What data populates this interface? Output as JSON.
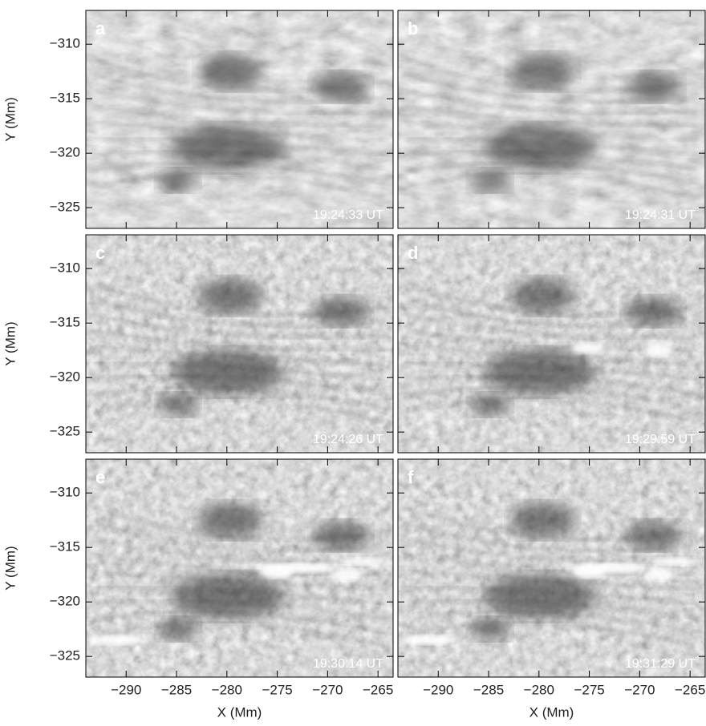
{
  "chart_data": [
    {
      "type": "image",
      "label": "a",
      "annotation": "19:24:33 UT",
      "xlim": [
        -294,
        -263.5
      ],
      "ylim": [
        -326.9,
        -306.9
      ],
      "xticks": [
        -290,
        -285,
        -280,
        -275,
        -270,
        -265
      ],
      "yticks": [
        {
          "value": -310,
          "label": "−310"
        },
        {
          "value": -315,
          "label": "−315"
        },
        {
          "value": -320,
          "label": "−320"
        },
        {
          "value": -325,
          "label": "−325"
        }
      ],
      "ylabel": "Y (Mm)"
    },
    {
      "type": "image",
      "label": "b",
      "annotation": "19:24:31 UT",
      "xlim": [
        -294,
        -263.5
      ],
      "ylim": [
        -326.9,
        -306.9
      ],
      "xticks": [
        -290,
        -285,
        -280,
        -275,
        -270,
        -265
      ],
      "yticks": [
        -310,
        -315,
        -320,
        -325
      ]
    },
    {
      "type": "image",
      "label": "c",
      "annotation": "19:24:26 UT",
      "xlim": [
        -294,
        -263.5
      ],
      "ylim": [
        -326.9,
        -306.9
      ],
      "xticks": [
        -290,
        -285,
        -280,
        -275,
        -270,
        -265
      ],
      "yticks": [
        {
          "value": -310,
          "label": "−310"
        },
        {
          "value": -315,
          "label": "−315"
        },
        {
          "value": -320,
          "label": "−320"
        },
        {
          "value": -325,
          "label": "−325"
        }
      ],
      "ylabel": "Y (Mm)"
    },
    {
      "type": "image",
      "label": "d",
      "annotation": "19:29:59 UT",
      "xlim": [
        -294,
        -263.5
      ],
      "ylim": [
        -326.9,
        -306.9
      ],
      "xticks": [
        -290,
        -285,
        -280,
        -275,
        -270,
        -265
      ],
      "yticks": [
        -310,
        -315,
        -320,
        -325
      ]
    },
    {
      "type": "image",
      "label": "e",
      "annotation": "19:30:14 UT",
      "xlim": [
        -294,
        -263.5
      ],
      "ylim": [
        -326.9,
        -306.9
      ],
      "xticks": [
        {
          "value": -290,
          "label": "−290"
        },
        {
          "value": -285,
          "label": "−285"
        },
        {
          "value": -280,
          "label": "−280"
        },
        {
          "value": -275,
          "label": "−275"
        },
        {
          "value": -270,
          "label": "−270"
        },
        {
          "value": -265,
          "label": "−265"
        }
      ],
      "yticks": [
        {
          "value": -310,
          "label": "−310"
        },
        {
          "value": -315,
          "label": "−315"
        },
        {
          "value": -320,
          "label": "−320"
        },
        {
          "value": -325,
          "label": "−325"
        }
      ],
      "xlabel": "X (Mm)",
      "ylabel": "Y (Mm)"
    },
    {
      "type": "image",
      "label": "f",
      "annotation": "19:31:29 UT",
      "xlim": [
        -294,
        -263.5
      ],
      "ylim": [
        -326.9,
        -306.9
      ],
      "xticks": [
        {
          "value": -290,
          "label": "−290"
        },
        {
          "value": -285,
          "label": "−285"
        },
        {
          "value": -280,
          "label": "−280"
        },
        {
          "value": -275,
          "label": "−275"
        },
        {
          "value": -270,
          "label": "−270"
        },
        {
          "value": -265,
          "label": "−265"
        }
      ],
      "yticks": [
        -310,
        -315,
        -320,
        -325
      ],
      "xlabel": "X (Mm)"
    }
  ]
}
